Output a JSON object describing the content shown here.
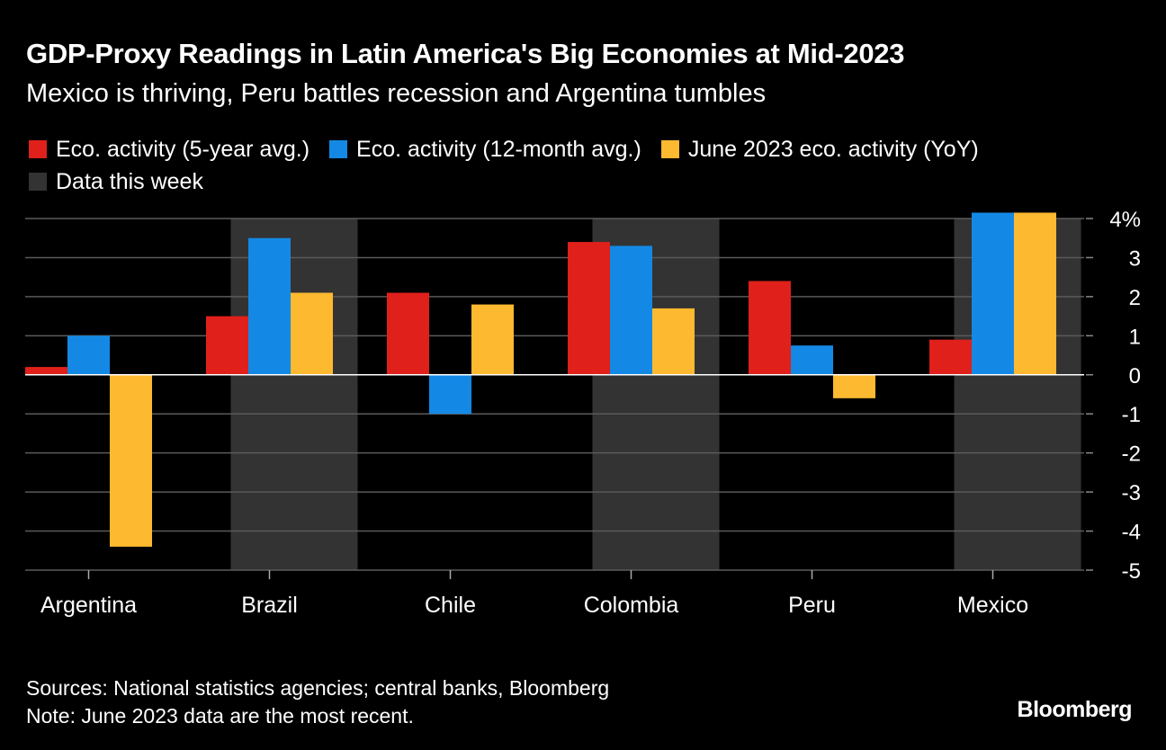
{
  "header": {
    "title": "GDP-Proxy Readings in Latin America's Big Economies at Mid-2023",
    "subtitle": "Mexico is thriving, Peru battles recession and Argentina tumbles"
  },
  "legend": {
    "items": [
      {
        "label": "Eco. activity (5-year avg.)",
        "color": "#e0201b"
      },
      {
        "label": "Eco. activity (12-month avg.)",
        "color": "#1389e5"
      },
      {
        "label": "June 2023 eco. activity (YoY)",
        "color": "#fdb930"
      }
    ],
    "highlight": {
      "label": "Data this week",
      "color": "#333333"
    }
  },
  "chart_data": {
    "type": "bar",
    "categories": [
      "Argentina",
      "Brazil",
      "Chile",
      "Colombia",
      "Peru",
      "Mexico"
    ],
    "series": [
      {
        "name": "Eco. activity (5-year avg.)",
        "color": "#e0201b",
        "values": [
          0.2,
          1.5,
          2.1,
          3.4,
          2.4,
          0.9
        ]
      },
      {
        "name": "Eco. activity (12-month avg.)",
        "color": "#1389e5",
        "values": [
          1.0,
          3.5,
          -1.0,
          3.3,
          0.75,
          4.15
        ]
      },
      {
        "name": "June 2023 eco. activity (YoY)",
        "color": "#fdb930",
        "values": [
          -4.4,
          2.1,
          1.8,
          1.7,
          -0.6,
          4.15
        ]
      }
    ],
    "highlighted_categories": [
      "Brazil",
      "Colombia",
      "Mexico"
    ],
    "y_ticks": [
      "4%",
      "3",
      "2",
      "1",
      "0",
      "-1",
      "-2",
      "-3",
      "-4",
      "-5"
    ],
    "y_tick_values": [
      4,
      3,
      2,
      1,
      0,
      -1,
      -2,
      -3,
      -4,
      -5
    ],
    "ylim": [
      -5,
      4
    ],
    "y_axis_side": "right",
    "grid": true
  },
  "footer": {
    "sources": "Sources: National statistics agencies; central banks, Bloomberg",
    "note": "Note: June 2023 data are the most recent.",
    "brand": "Bloomberg"
  }
}
